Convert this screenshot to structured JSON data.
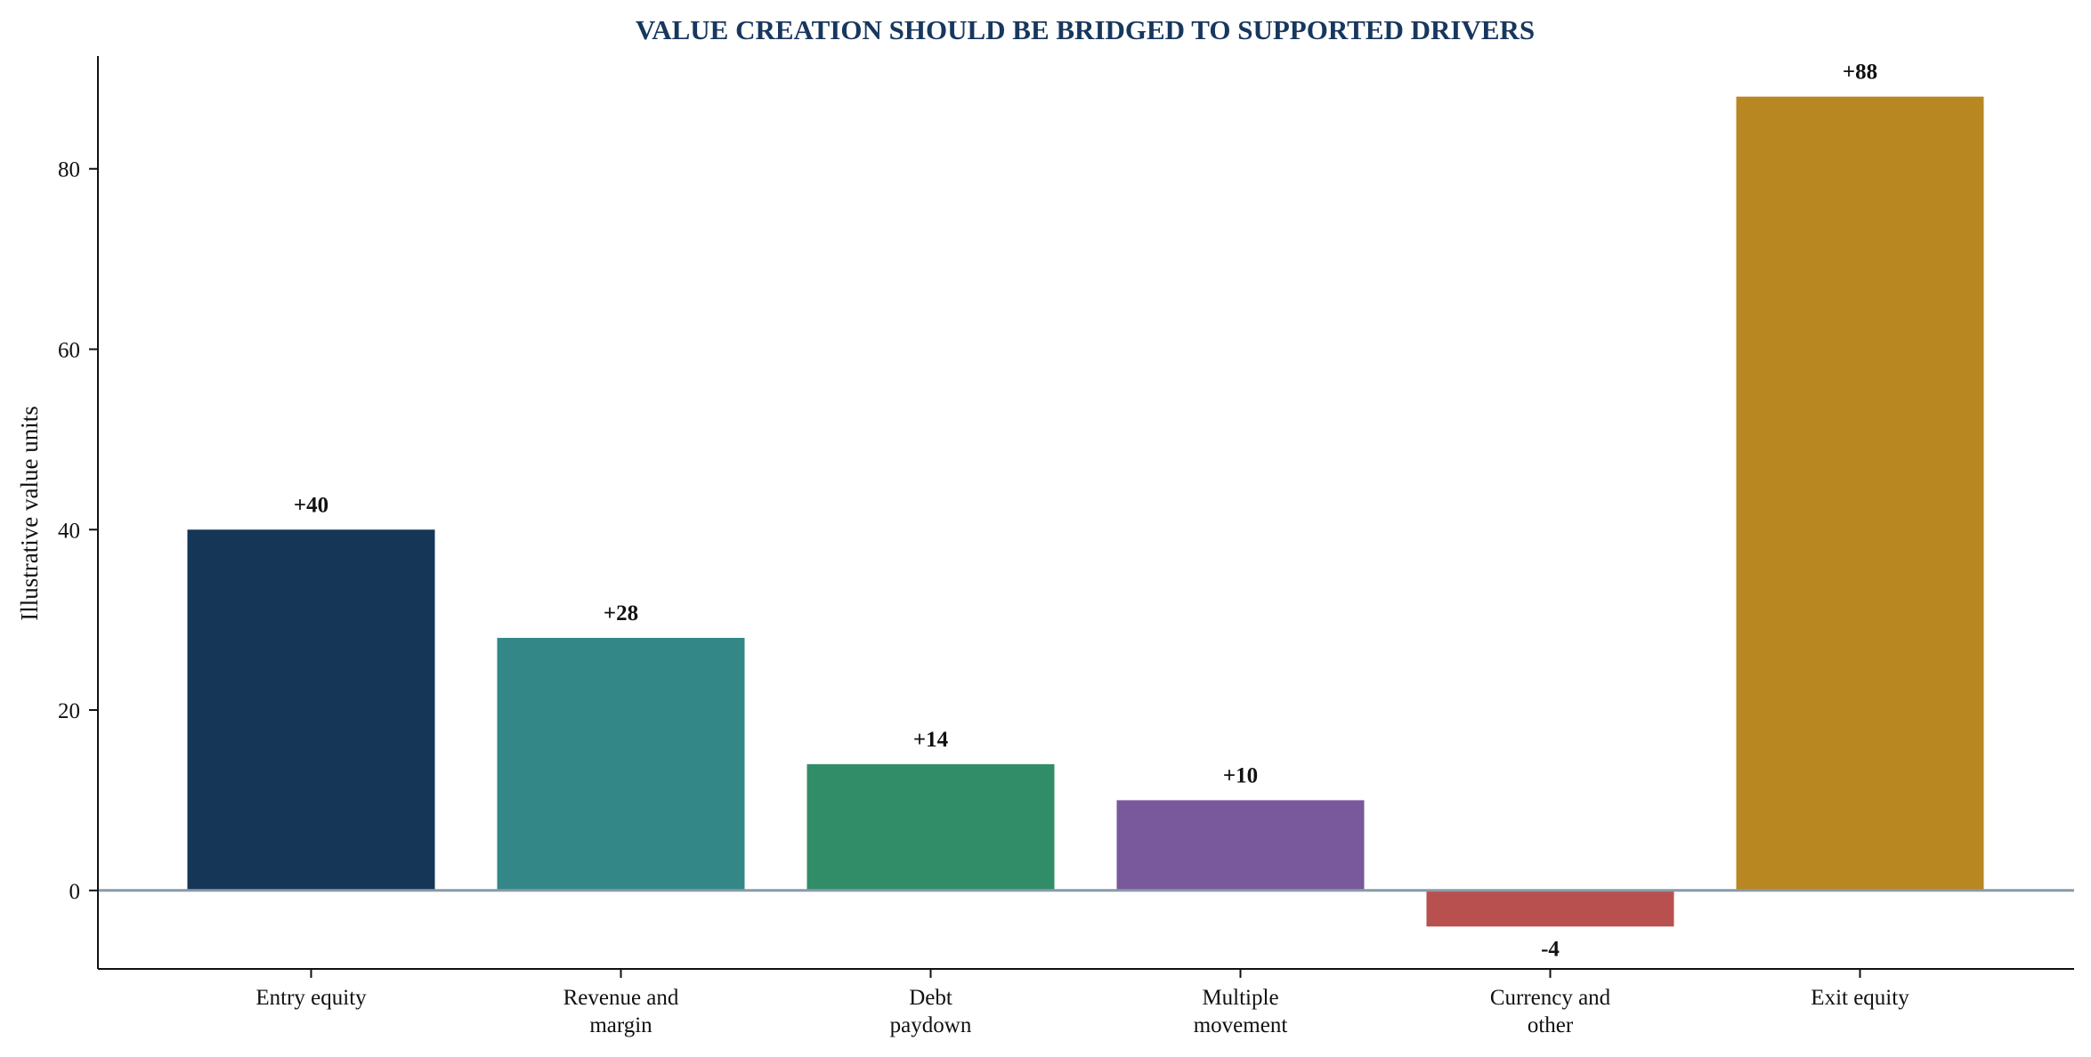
{
  "chart_data": {
    "type": "bar",
    "title": "VALUE CREATION SHOULD BE BRIDGED TO SUPPORTED DRIVERS",
    "xlabel": "",
    "ylabel": "Illustrative value units",
    "categories": [
      [
        "Entry equity"
      ],
      [
        "Revenue and",
        "margin"
      ],
      [
        "Debt",
        "paydown"
      ],
      [
        "Multiple",
        "movement"
      ],
      [
        "Currency and",
        "other"
      ],
      [
        "Exit equity"
      ]
    ],
    "values": [
      40,
      28,
      14,
      10,
      -4,
      88
    ],
    "data_labels": [
      "+40",
      "+28",
      "+14",
      "+10",
      "-4",
      "+88"
    ],
    "colors": [
      "#163658",
      "#338787",
      "#318d68",
      "#79589b",
      "#b85050",
      "#b88721"
    ],
    "ylim": [
      -8.7,
      92.5
    ],
    "yticks": [
      0,
      20,
      40,
      60,
      80
    ],
    "zero_line_color": "#8a9aa8",
    "grid": false,
    "legend": "none"
  }
}
